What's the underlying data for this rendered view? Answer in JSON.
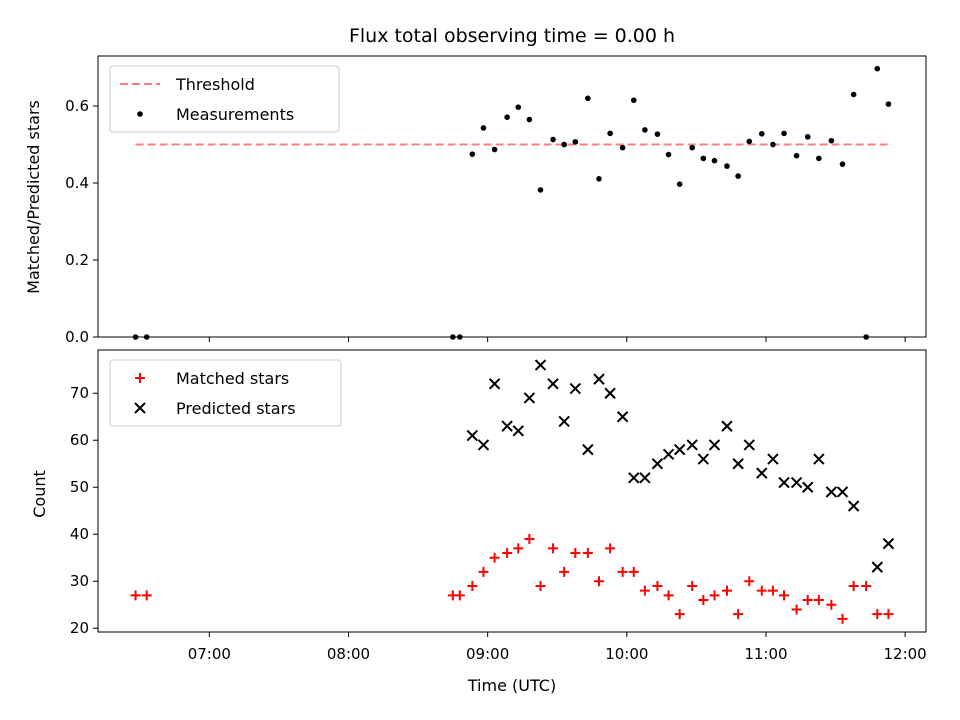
{
  "chart_data": {
    "title": "Flux total observing time = 0.00 h",
    "xlabel": "Time (UTC)",
    "x_tick_labels": [
      "07:00",
      "08:00",
      "09:00",
      "10:00",
      "11:00",
      "12:00"
    ],
    "x_tick_values_h": [
      7,
      8,
      9,
      10,
      11,
      12
    ],
    "xlim_h": [
      6.2,
      12.15
    ],
    "panels": [
      {
        "type": "scatter",
        "ylabel": "Matched/Predicted stars",
        "ylim": [
          0,
          0.73
        ],
        "y_ticks": [
          0.0,
          0.2,
          0.4,
          0.6
        ],
        "y_tick_labels": [
          "0.0",
          "0.2",
          "0.4",
          "0.6"
        ],
        "legend_position": "upper-left",
        "series": [
          {
            "name": "Threshold",
            "kind": "line",
            "style": "dashed",
            "color": "#ff7f7f",
            "x": [
              6.47,
              11.88
            ],
            "y": [
              0.5,
              0.5
            ]
          },
          {
            "name": "Measurements",
            "kind": "dots",
            "color": "#000000",
            "x": [
              6.47,
              6.55,
              8.75,
              8.8,
              8.89,
              8.97,
              9.05,
              9.14,
              9.22,
              9.3,
              9.38,
              9.47,
              9.55,
              9.63,
              9.72,
              9.8,
              9.88,
              9.97,
              10.05,
              10.13,
              10.22,
              10.3,
              10.38,
              10.47,
              10.55,
              10.63,
              10.72,
              10.8,
              10.88,
              10.97,
              11.05,
              11.13,
              11.22,
              11.3,
              11.38,
              11.47,
              11.55,
              11.63,
              11.72,
              11.8,
              11.88
            ],
            "y": [
              0.0,
              0.0,
              0.0,
              0.0,
              0.475,
              0.543,
              0.487,
              0.571,
              0.597,
              0.565,
              0.382,
              0.513,
              0.5,
              0.507,
              0.62,
              0.411,
              0.529,
              0.492,
              0.615,
              0.538,
              0.527,
              0.474,
              0.397,
              0.492,
              0.464,
              0.458,
              0.444,
              0.418,
              0.508,
              0.528,
              0.5,
              0.529,
              0.471,
              0.52,
              0.464,
              0.51,
              0.449,
              0.63,
              0.0,
              0.697,
              0.605
            ]
          }
        ]
      },
      {
        "type": "scatter",
        "ylabel": "Count",
        "ylim": [
          19.2,
          79.2
        ],
        "y_ticks": [
          20,
          30,
          40,
          50,
          60,
          70
        ],
        "y_tick_labels": [
          "20",
          "30",
          "40",
          "50",
          "60",
          "70"
        ],
        "legend_position": "upper-left",
        "series": [
          {
            "name": "Matched stars",
            "kind": "plus",
            "color": "#ff0000",
            "x": [
              6.47,
              6.55,
              8.75,
              8.8,
              8.89,
              8.97,
              9.05,
              9.14,
              9.22,
              9.3,
              9.38,
              9.47,
              9.55,
              9.63,
              9.72,
              9.8,
              9.88,
              9.97,
              10.05,
              10.13,
              10.22,
              10.3,
              10.38,
              10.47,
              10.55,
              10.63,
              10.72,
              10.8,
              10.88,
              10.97,
              11.05,
              11.13,
              11.22,
              11.3,
              11.38,
              11.47,
              11.55,
              11.63,
              11.72,
              11.8,
              11.88
            ],
            "y": [
              27,
              27,
              27,
              27,
              29,
              32,
              35,
              36,
              37,
              39,
              29,
              37,
              32,
              36,
              36,
              30,
              37,
              32,
              32,
              28,
              29,
              27,
              23,
              29,
              26,
              27,
              28,
              23,
              30,
              28,
              28,
              27,
              24,
              26,
              26,
              25,
              22,
              29,
              29,
              23,
              23
            ]
          },
          {
            "name": "Predicted stars",
            "kind": "x",
            "color": "#000000",
            "x": [
              8.89,
              8.97,
              9.05,
              9.14,
              9.22,
              9.3,
              9.38,
              9.47,
              9.55,
              9.63,
              9.72,
              9.8,
              9.88,
              9.97,
              10.05,
              10.13,
              10.22,
              10.3,
              10.38,
              10.47,
              10.55,
              10.63,
              10.72,
              10.8,
              10.88,
              10.97,
              11.05,
              11.13,
              11.22,
              11.3,
              11.38,
              11.47,
              11.55,
              11.63,
              11.8,
              11.88
            ],
            "y": [
              61,
              59,
              72,
              63,
              62,
              69,
              76,
              72,
              64,
              71,
              58,
              73,
              70,
              65,
              52,
              52,
              55,
              57,
              58,
              59,
              56,
              59,
              63,
              55,
              59,
              53,
              56,
              51,
              51,
              50,
              56,
              49,
              49,
              46,
              33,
              38
            ]
          }
        ]
      }
    ]
  }
}
